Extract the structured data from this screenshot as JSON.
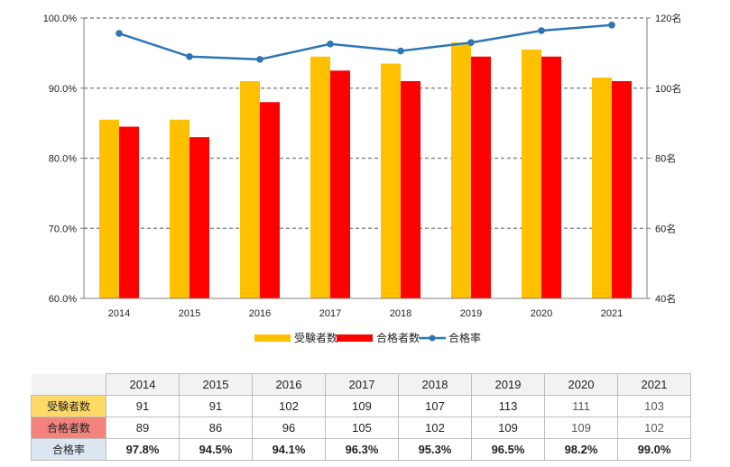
{
  "colors": {
    "applicants": "#FFC000",
    "passers": "#FF0000",
    "rate": "#2E75B6",
    "applicants_label_bg": "#FFD966",
    "passers_label_bg": "#F4837D",
    "rate_label_bg": "#DCE6F1",
    "header_bg": "#F2F2F2",
    "muted_text": "#595959"
  },
  "chart_data": {
    "type": "bar",
    "categories": [
      "2014",
      "2015",
      "2016",
      "2017",
      "2018",
      "2019",
      "2020",
      "2021"
    ],
    "series": [
      {
        "name": "受験者数",
        "type": "bar",
        "axis": "right",
        "values": [
          91,
          91,
          102,
          109,
          107,
          113,
          111,
          103
        ]
      },
      {
        "name": "合格者数",
        "type": "bar",
        "axis": "right",
        "values": [
          89,
          86,
          96,
          105,
          102,
          109,
          109,
          102
        ]
      },
      {
        "name": "合格率",
        "type": "line",
        "axis": "left",
        "values": [
          97.8,
          94.5,
          94.1,
          96.3,
          95.3,
          96.5,
          98.2,
          99.0
        ]
      }
    ],
    "left_axis": {
      "min": 60,
      "max": 100,
      "ticks": [
        "60.0%",
        "70.0%",
        "80.0%",
        "90.0%",
        "100.0%"
      ]
    },
    "right_axis": {
      "min": 40,
      "max": 120,
      "ticks": [
        "40名",
        "60名",
        "80名",
        "100名",
        "120名"
      ]
    },
    "grid": true,
    "legend": "bottom"
  },
  "table": {
    "header": [
      "2014",
      "2015",
      "2016",
      "2017",
      "2018",
      "2019",
      "2020",
      "2021"
    ],
    "rows": [
      {
        "label": "受験者数",
        "values": [
          "91",
          "91",
          "102",
          "109",
          "107",
          "113",
          "111",
          "103"
        ]
      },
      {
        "label": "合格者数",
        "values": [
          "89",
          "86",
          "96",
          "105",
          "102",
          "109",
          "109",
          "102"
        ]
      },
      {
        "label": "合格率",
        "values": [
          "97.8%",
          "94.5%",
          "94.1%",
          "96.3%",
          "95.3%",
          "96.5%",
          "98.2%",
          "99.0%"
        ]
      }
    ]
  }
}
